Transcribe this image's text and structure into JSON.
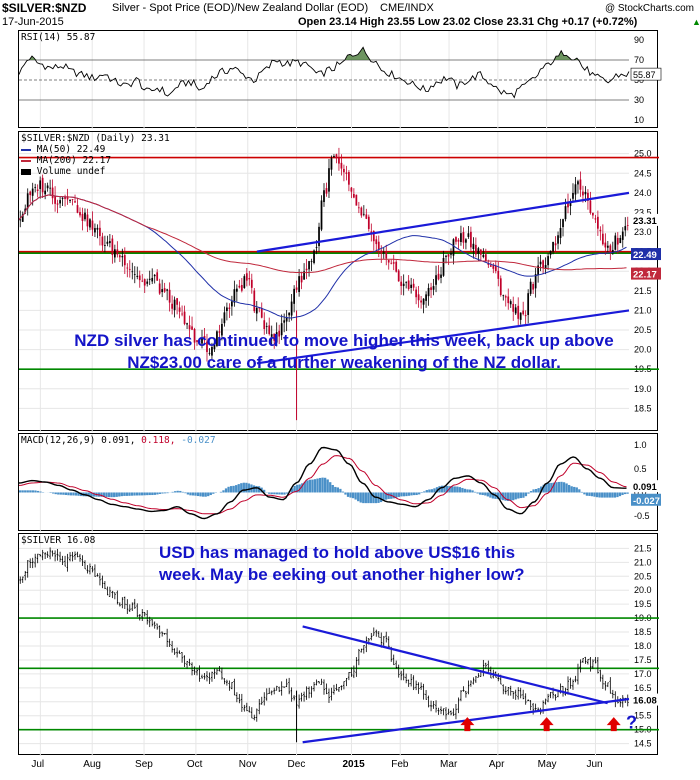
{
  "header": {
    "symbol": "$SILVER:$NZD",
    "description": "Silver - Spot Price (EOD)/New Zealand Dollar (EOD)",
    "exchange": "CME/INDX",
    "watermark": "@ StockCharts.com",
    "date": "17-Jun-2015",
    "ohlc": "Open 23.14  High 23.55  Low 23.02  Close 23.31  Chg +0.17 (+0.72%)",
    "chg_marker": "▲"
  },
  "chart_data": [
    {
      "type": "line",
      "panel": "rsi",
      "title": "RSI(14) 55.87",
      "y_ticks": [
        90,
        70,
        50,
        30,
        10
      ],
      "ylim": [
        5,
        95
      ],
      "reference_lines": [
        70,
        50,
        30
      ],
      "last_value": "55.87",
      "series": [
        {
          "values": [
            58,
            72,
            66,
            62,
            64,
            58,
            55,
            52,
            56,
            48,
            44,
            50,
            38,
            42,
            35,
            45,
            48,
            40,
            52,
            58,
            62,
            55,
            50,
            60,
            70,
            66,
            68,
            64,
            55,
            60,
            65,
            75,
            80,
            72,
            60,
            55,
            50,
            45,
            40,
            48,
            52,
            44,
            50,
            55,
            48,
            38,
            35,
            42,
            50,
            62,
            70,
            78,
            72,
            60,
            52,
            48,
            55,
            56
          ]
        }
      ]
    },
    {
      "type": "candlestick",
      "panel": "silver_nzd",
      "title": "$SILVER:$NZD (Daily) 23.31",
      "legend": [
        {
          "label": "MA(50) 22.49",
          "color": "#1f2fa8"
        },
        {
          "label": "MA(200) 22.17",
          "color": "#c0283c"
        },
        {
          "label": "Volume undef",
          "color": "#000000"
        }
      ],
      "y_ticks": [
        25.0,
        24.5,
        24.0,
        23.5,
        23.0,
        22.5,
        22.0,
        21.5,
        21.0,
        20.5,
        20.0,
        19.5,
        19.0,
        18.5
      ],
      "ylim": [
        18.0,
        25.4
      ],
      "close": [
        23.4,
        23.9,
        24.2,
        24.1,
        23.8,
        24.0,
        23.6,
        23.3,
        23.0,
        22.7,
        22.5,
        22.3,
        22.0,
        21.7,
        21.8,
        21.5,
        21.2,
        20.8,
        20.4,
        20.2,
        19.9,
        20.6,
        21.1,
        21.6,
        21.8,
        20.9,
        20.6,
        20.3,
        20.8,
        21.6,
        22.0,
        22.5,
        24.0,
        24.9,
        24.5,
        23.9,
        23.4,
        22.9,
        22.4,
        22.1,
        21.8,
        21.6,
        21.3,
        21.4,
        21.9,
        22.4,
        22.8,
        22.9,
        22.6,
        22.3,
        21.9,
        21.4,
        21.0,
        20.9,
        21.7,
        22.2,
        22.6,
        23.2,
        23.9,
        24.2,
        23.6,
        22.9,
        22.6,
        22.8,
        23.3
      ],
      "last_price_label": "23.31",
      "ma50_label": "22.49",
      "ma200_label": "22.17",
      "horizontal_lines": [
        {
          "y": 24.9,
          "color": "#cc0000"
        },
        {
          "y": 22.5,
          "color": "#cc0000"
        },
        {
          "y": 22.5,
          "color": "#008800"
        },
        {
          "y": 19.5,
          "color": "#008800"
        }
      ],
      "trend_lines": [
        {
          "from": [
            0.39,
            22.5
          ],
          "to": [
            1.0,
            24.0
          ],
          "color": "#1a1ad8"
        },
        {
          "from": [
            0.39,
            19.65
          ],
          "to": [
            1.0,
            21.0
          ],
          "color": "#1a1ad8"
        }
      ],
      "annotation": "NZD silver has continued to move higher this week, back up above NZ$23.00 care of a further weakening of the NZ dollar."
    },
    {
      "type": "line",
      "panel": "macd",
      "title": "MACD(12,26,9) 0.091, 0.118, -0.027",
      "title_parts": {
        "label": "MACD(12,26,9)",
        "macd": "0.091,",
        "signal": "0.118,",
        "hist": "-0.027"
      },
      "y_ticks": [
        1.0,
        0.5,
        0.0,
        -0.5
      ],
      "ylim": [
        -0.75,
        1.15
      ],
      "last_macd_label": "0.091",
      "last_hist_label": "-0.027",
      "series": [
        {
          "name": "MACD",
          "values": [
            0.2,
            0.25,
            0.22,
            0.15,
            0.05,
            -0.05,
            -0.15,
            -0.25,
            -0.3,
            -0.35,
            -0.4,
            -0.38,
            -0.3,
            -0.45,
            -0.55,
            -0.45,
            -0.2,
            0.05,
            0.1,
            -0.1,
            -0.15,
            0.2,
            0.6,
            0.95,
            0.9,
            0.6,
            0.2,
            -0.1,
            -0.2,
            -0.25,
            -0.3,
            -0.15,
            0.1,
            0.3,
            0.35,
            0.2,
            -0.05,
            -0.35,
            -0.45,
            -0.2,
            0.2,
            0.6,
            0.75,
            0.5,
            0.3,
            0.1,
            0.09
          ]
        },
        {
          "name": "Signal",
          "values": [
            0.15,
            0.2,
            0.22,
            0.2,
            0.12,
            0.04,
            -0.05,
            -0.14,
            -0.22,
            -0.28,
            -0.34,
            -0.36,
            -0.34,
            -0.38,
            -0.45,
            -0.45,
            -0.35,
            -0.18,
            -0.05,
            -0.06,
            -0.1,
            0.02,
            0.3,
            0.6,
            0.78,
            0.72,
            0.45,
            0.15,
            -0.05,
            -0.16,
            -0.24,
            -0.22,
            -0.06,
            0.16,
            0.28,
            0.26,
            0.1,
            -0.15,
            -0.32,
            -0.28,
            -0.02,
            0.35,
            0.62,
            0.58,
            0.42,
            0.22,
            0.12
          ]
        }
      ]
    },
    {
      "type": "candlestick",
      "panel": "silver_usd",
      "title": "$SILVER 16.08",
      "y_ticks": [
        21.5,
        21.0,
        20.5,
        20.0,
        19.5,
        19.0,
        18.5,
        18.0,
        17.5,
        17.0,
        16.5,
        16.0,
        15.5,
        15.0,
        14.5
      ],
      "ylim": [
        14.2,
        21.8
      ],
      "close": [
        20.5,
        21.1,
        21.2,
        21.3,
        21.0,
        21.2,
        20.8,
        20.4,
        19.9,
        19.6,
        19.4,
        19.1,
        18.8,
        18.4,
        17.9,
        17.3,
        17.0,
        16.9,
        17.0,
        16.6,
        15.9,
        15.5,
        16.1,
        16.4,
        16.6,
        16.0,
        16.4,
        16.8,
        16.2,
        16.6,
        17.1,
        18.0,
        18.5,
        18.2,
        17.1,
        16.8,
        16.5,
        16.0,
        15.7,
        15.5,
        16.3,
        16.8,
        17.2,
        16.9,
        16.5,
        16.3,
        15.9,
        15.7,
        16.2,
        16.4,
        16.7,
        17.6,
        17.3,
        16.6,
        16.0,
        16.1
      ],
      "last_price_label": "16.08",
      "horizontal_lines": [
        {
          "y": 19.0,
          "color": "#008800"
        },
        {
          "y": 17.2,
          "color": "#008800"
        },
        {
          "y": 15.0,
          "color": "#008800"
        }
      ],
      "trend_lines": [
        {
          "from": [
            0.465,
            18.7
          ],
          "to": [
            0.965,
            15.95
          ],
          "color": "#1a1ad8"
        },
        {
          "from": [
            0.465,
            14.55
          ],
          "to": [
            1.0,
            16.1
          ],
          "color": "#1a1ad8"
        }
      ],
      "arrow_marks_x": [
        0.735,
        0.865,
        0.975
      ],
      "question_mark": "?",
      "annotation": "USD has managed to hold above US$16 this week. May be eeking out another higher low?"
    }
  ],
  "x_axis": {
    "months": [
      "Jul",
      "Aug",
      "Sep",
      "Oct",
      "Nov",
      "Dec",
      "2015",
      "Feb",
      "Mar",
      "Apr",
      "May",
      "Jun"
    ],
    "positions": [
      0.035,
      0.12,
      0.205,
      0.29,
      0.375,
      0.455,
      0.545,
      0.625,
      0.705,
      0.785,
      0.865,
      0.945
    ]
  },
  "colors": {
    "up": "#000000",
    "down": "#c0002a",
    "ma50": "#1f2fa8",
    "ma200": "#c0283c",
    "green": "#008800",
    "red": "#cc0000",
    "trend": "#1a1ad8",
    "annot": "#1414c8",
    "macd_hist": "#4a90c8",
    "rsi_fill": "#4a7a3a"
  }
}
